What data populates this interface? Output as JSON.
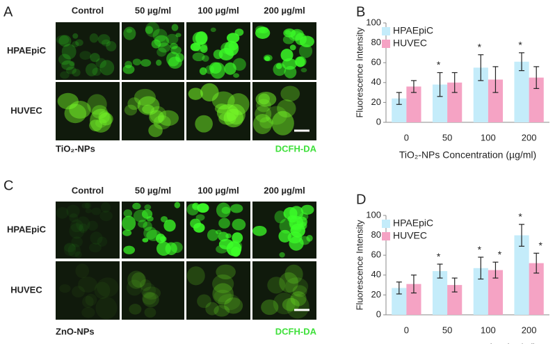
{
  "panels": [
    {
      "label": "A",
      "columns": [
        "Control",
        "50 µg/ml",
        "100 µg/ml",
        "200 µg/ml"
      ],
      "rows": [
        "HPAEpiC",
        "HUVEC"
      ],
      "treatment": "TiO₂-NPs",
      "stain": "DCFH-DA"
    },
    {
      "label": "C",
      "columns": [
        "Control",
        "50 µg/ml",
        "100 µg/ml",
        "200 µg/ml"
      ],
      "rows": [
        "HPAEpiC",
        "HUVEC"
      ],
      "treatment": "ZnO-NPs",
      "stain": "DCFH-DA"
    }
  ],
  "chart_data": [
    {
      "type": "bar",
      "label": "B",
      "ylabel": "Fluorescence Intensity",
      "xlabel": "TiO₂-NPs Concentration (µg/ml)",
      "categories": [
        "0",
        "50",
        "100",
        "200"
      ],
      "series": [
        {
          "name": "HPAEpiC",
          "color": "#c4ecfa",
          "values": [
            24,
            38,
            55,
            61
          ],
          "errors": [
            6,
            12,
            13,
            9
          ],
          "markers": [
            null,
            "*",
            "*",
            "*"
          ]
        },
        {
          "name": "HUVEC",
          "color": "#f5a3c4",
          "values": [
            36,
            40,
            43,
            45
          ],
          "errors": [
            6,
            10,
            13,
            11
          ],
          "markers": [
            null,
            null,
            null,
            null
          ]
        }
      ],
      "ylim": [
        0,
        100
      ],
      "yticks": [
        0,
        20,
        40,
        60,
        80,
        100
      ],
      "legend": "upper left"
    },
    {
      "type": "bar",
      "label": "D",
      "ylabel": "Fluorescence Intensity",
      "xlabel": "ZnO-NPs Concentration (µg/ml)",
      "categories": [
        "0",
        "50",
        "100",
        "200"
      ],
      "series": [
        {
          "name": "HPAEpiC",
          "color": "#c4ecfa",
          "values": [
            27,
            44,
            47,
            80
          ],
          "errors": [
            6,
            7,
            11,
            11
          ],
          "markers": [
            null,
            "*",
            "*",
            "*"
          ]
        },
        {
          "name": "HUVEC",
          "color": "#f5a3c4",
          "values": [
            31,
            30,
            45,
            52
          ],
          "errors": [
            9,
            7,
            8,
            10
          ],
          "markers": [
            null,
            null,
            "*",
            "*"
          ]
        }
      ],
      "ylim": [
        0,
        100
      ],
      "yticks": [
        0,
        20,
        40,
        60,
        80,
        100
      ],
      "legend": "upper left"
    }
  ]
}
